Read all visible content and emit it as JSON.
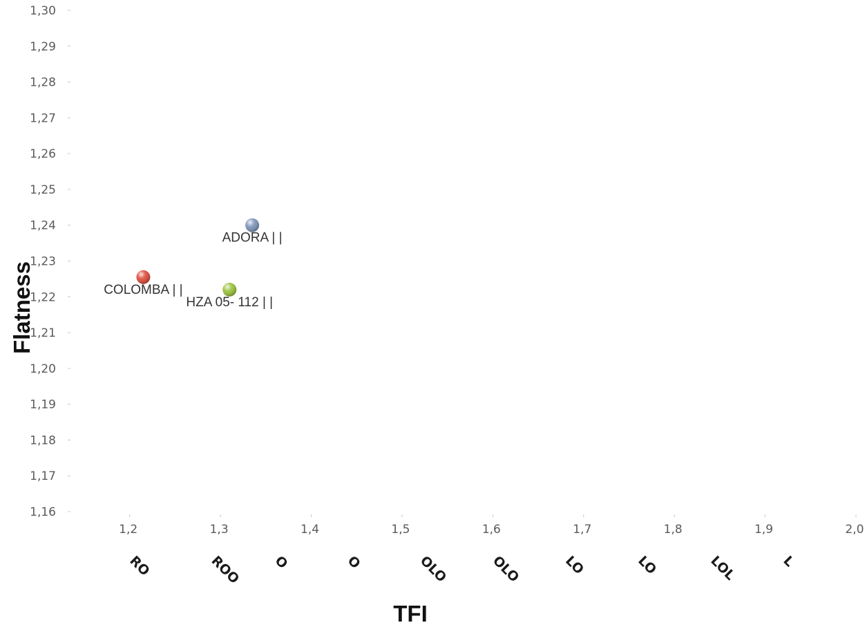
{
  "chart_data": {
    "type": "scatter",
    "xlabel": "TFI",
    "ylabel": "Flatness",
    "xlim": [
      1.15,
      2.0
    ],
    "ylim": [
      1.16,
      1.3
    ],
    "x_ticks": [
      "1,2",
      "1,3",
      "1,4",
      "1,5",
      "1,6",
      "1,7",
      "1,8",
      "1,9",
      "2,0"
    ],
    "x_tick_values": [
      1.2,
      1.3,
      1.4,
      1.5,
      1.6,
      1.7,
      1.8,
      1.9,
      2.0
    ],
    "y_ticks": [
      "1,16",
      "1,17",
      "1,18",
      "1,19",
      "1,20",
      "1,21",
      "1,22",
      "1,23",
      "1,24",
      "1,25",
      "1,26",
      "1,27",
      "1,28",
      "1,29",
      "1,30"
    ],
    "y_tick_values": [
      1.16,
      1.17,
      1.18,
      1.19,
      1.2,
      1.21,
      1.22,
      1.23,
      1.24,
      1.25,
      1.26,
      1.27,
      1.28,
      1.29,
      1.3
    ],
    "categories": [
      "RO",
      "ROO",
      "O",
      "O",
      "OLO",
      "OLO",
      "LO",
      "LO",
      "LOL",
      "L"
    ],
    "category_x_values": [
      1.21,
      1.3,
      1.37,
      1.45,
      1.53,
      1.61,
      1.69,
      1.77,
      1.85,
      1.93
    ],
    "grid": false,
    "legend": "none",
    "points": [
      {
        "label": "ADORA |  |",
        "x": 1.335,
        "y": 1.24,
        "color": "#7b93b8"
      },
      {
        "label": "COLOMBA |  |",
        "x": 1.215,
        "y": 1.2255,
        "color": "#dd4a38"
      },
      {
        "label": "HZA 05- 112 |  |",
        "x": 1.31,
        "y": 1.222,
        "color": "#99c13a"
      }
    ]
  }
}
